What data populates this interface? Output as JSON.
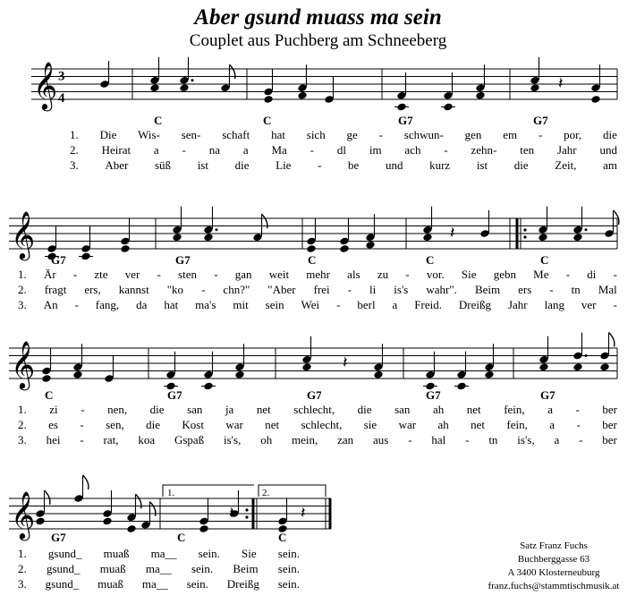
{
  "title": "Aber gsund muass ma sein",
  "subtitle": "Couplet aus Puchberg am Schneeberg",
  "time_signature": {
    "top": "3",
    "bottom": "4"
  },
  "volta": [
    "1.",
    "2."
  ],
  "systems": [
    {
      "chords": [
        "C",
        "C",
        "G7",
        "G7"
      ],
      "verses": [
        [
          "1.",
          "Die",
          "Wis-",
          "sen-",
          "schaft",
          "hat",
          "sich",
          "ge",
          "-",
          "schwun-",
          "gen",
          "em",
          "-",
          "por,",
          "die"
        ],
        [
          "2.",
          "Heirat",
          "a",
          "-",
          "na",
          "a",
          "Ma",
          "-",
          "dl",
          "im",
          "ach",
          "-",
          "zehn-",
          "ten",
          "Jahr",
          "und"
        ],
        [
          "3.",
          "Aber",
          "süß",
          "ist",
          "die",
          "Lie",
          "-",
          "be",
          "und",
          "kurz",
          "ist",
          "die",
          "Zeit,",
          "am"
        ]
      ]
    },
    {
      "chords": [
        "G7",
        "G7",
        "C",
        "C",
        "C"
      ],
      "verses": [
        [
          "1.",
          "Är",
          "-",
          "zte",
          "ver",
          "-",
          "sten",
          "-",
          "gan",
          "weit",
          "mehr",
          "als",
          "zu",
          "-",
          "vor.",
          "Sie",
          "gebn",
          "Me",
          "-",
          "di",
          "-"
        ],
        [
          "2.",
          "fragt",
          "ers,",
          "kannst",
          "\"ko",
          "-",
          "chn?\"",
          "\"Aber",
          "frei",
          "-",
          "li",
          "is's",
          "wahr\".",
          "Beim",
          "ers",
          "-",
          "tn",
          "Mal"
        ],
        [
          "3.",
          "An",
          "-",
          "fang,",
          "da",
          "hat",
          "ma's",
          "mit",
          "sein",
          "Wei",
          "-",
          "berl",
          "a",
          "Freid.",
          "Dreißg",
          "Jahr",
          "lang",
          "ver",
          "-"
        ]
      ]
    },
    {
      "chords": [
        "C",
        "G7",
        "G7",
        "G7",
        "G7"
      ],
      "verses": [
        [
          "1.",
          "zi",
          "-",
          "nen,",
          "die",
          "san",
          "ja",
          "net",
          "schlecht,",
          "die",
          "san",
          "ah",
          "net",
          "fein,",
          "a",
          "-",
          "ber"
        ],
        [
          "2.",
          "es",
          "-",
          "sen,",
          "die",
          "Kost",
          "war",
          "net",
          "schlecht,",
          "sie",
          "war",
          "ah",
          "net",
          "fein,",
          "a",
          "-",
          "ber"
        ],
        [
          "3.",
          "hei",
          "-",
          "rat,",
          "koa",
          "Gspaß",
          "is's,",
          "oh",
          "mein,",
          "zan",
          "aus",
          "-",
          "hal",
          "-",
          "tn",
          "is's,",
          "a",
          "-",
          "ber"
        ]
      ]
    },
    {
      "chords": [
        "G7",
        "C",
        "C"
      ],
      "verses": [
        [
          "1.",
          "gsund_",
          "muaß",
          "ma__",
          "sein.",
          "Sie",
          "sein."
        ],
        [
          "2.",
          "gsund_",
          "muaß",
          "ma__",
          "sein.",
          "Beim",
          "sein."
        ],
        [
          "3.",
          "gsund_",
          "muaß",
          "ma__",
          "sein.",
          "Dreißg",
          "sein."
        ]
      ]
    }
  ],
  "credits": [
    "Satz Franz Fuchs",
    "Buchberggasse 63",
    "A 3400 Klosterneuburg",
    "franz.fuchs@stammtischmusik.at"
  ]
}
